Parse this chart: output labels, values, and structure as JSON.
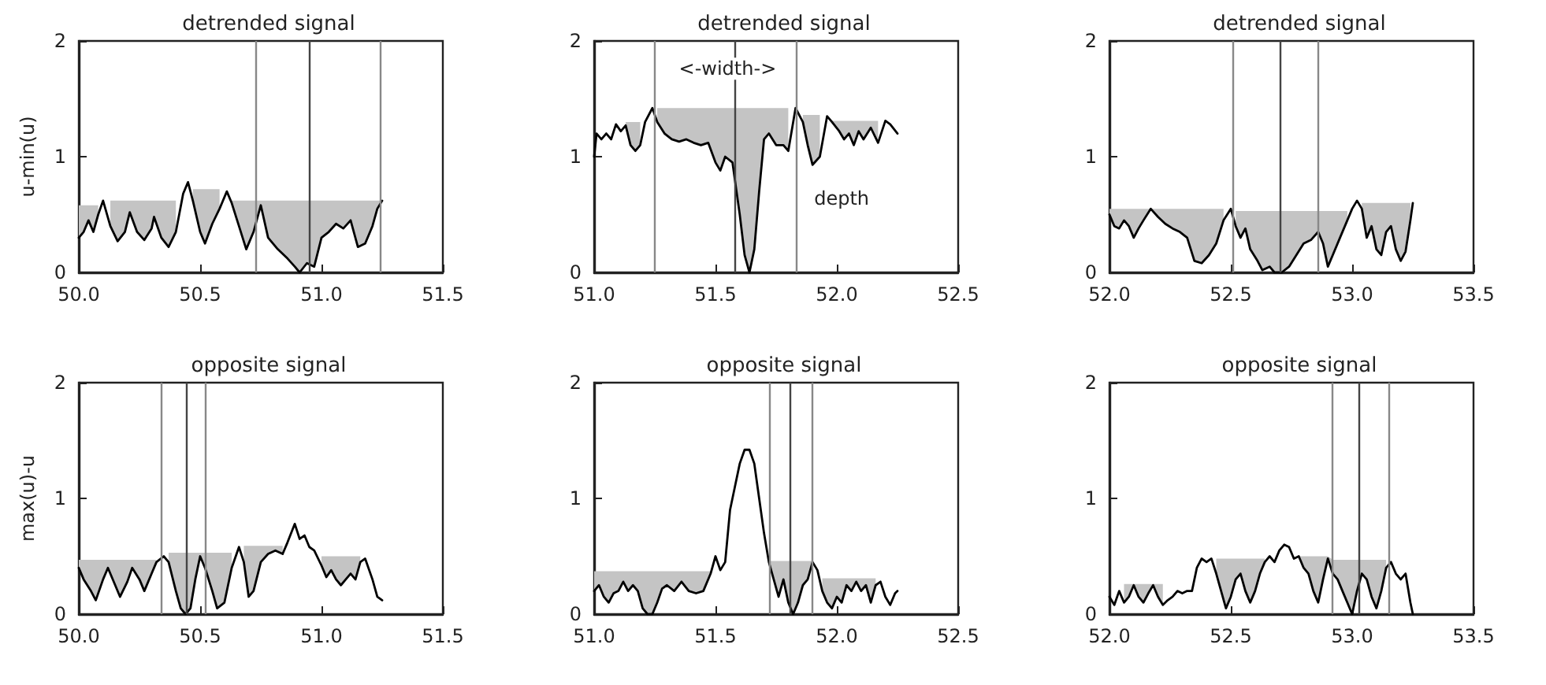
{
  "chart_data": [
    {
      "type": "line",
      "title": "detrended signal",
      "ylabel": "u-min(u)",
      "xlim": [
        50,
        51.5
      ],
      "xticks": [
        {
          "value": 50,
          "label": "50.0"
        },
        50.5,
        {
          "value": 51,
          "label": "51.0"
        },
        51.5
      ],
      "ylim": [
        0,
        2
      ],
      "yticks": [
        0,
        1,
        2
      ],
      "series": [
        {
          "color": "#000000",
          "x": [
            50.0,
            50.02,
            50.04,
            50.06,
            50.08,
            50.1,
            50.13,
            50.16,
            50.19,
            50.21,
            50.24,
            50.27,
            50.3,
            50.31,
            50.34,
            50.37,
            50.4,
            50.43,
            50.45,
            50.47,
            50.5,
            50.52,
            50.55,
            50.58,
            50.61,
            50.63,
            50.66,
            50.69,
            50.72,
            50.75,
            50.78,
            50.82,
            50.86,
            50.89,
            50.91,
            50.94,
            50.97,
            51.0,
            51.03,
            51.06,
            51.09,
            51.12,
            51.15,
            51.18,
            51.21,
            51.23,
            51.25
          ],
          "values": [
            0.3,
            0.35,
            0.45,
            0.35,
            0.5,
            0.62,
            0.4,
            0.27,
            0.35,
            0.52,
            0.35,
            0.28,
            0.38,
            0.48,
            0.3,
            0.22,
            0.35,
            0.68,
            0.78,
            0.62,
            0.35,
            0.25,
            0.42,
            0.55,
            0.7,
            0.6,
            0.4,
            0.2,
            0.35,
            0.58,
            0.3,
            0.2,
            0.12,
            0.05,
            0.0,
            0.08,
            0.05,
            0.3,
            0.35,
            0.42,
            0.38,
            0.45,
            0.22,
            0.25,
            0.4,
            0.55,
            0.62
          ],
          "lower": [
            0.3,
            0.35,
            0.45,
            0.35,
            0.5,
            null,
            0.4,
            0.27,
            0.35,
            0.52,
            0.35,
            0.28,
            0.38,
            0.48,
            0.3,
            0.22,
            0.35,
            null,
            null,
            0.62,
            0.35,
            0.25,
            0.42,
            0.55,
            null,
            0.6,
            0.4,
            0.2,
            0.35,
            0.58,
            0.3,
            0.2,
            0.12,
            0.05,
            0.0,
            0.08,
            0.05,
            0.3,
            0.35,
            0.42,
            0.38,
            0.45,
            0.22,
            0.25,
            0.4,
            0.55,
            0.62
          ],
          "upper": [
            0.58,
            0.58,
            0.58,
            0.58,
            0.58,
            null,
            0.62,
            0.62,
            0.62,
            0.62,
            0.62,
            0.62,
            0.62,
            0.62,
            0.62,
            0.62,
            0.62,
            null,
            null,
            0.72,
            0.72,
            0.72,
            0.72,
            0.72,
            null,
            0.62,
            0.62,
            0.62,
            0.62,
            0.62,
            0.62,
            0.62,
            0.62,
            0.62,
            0.62,
            0.62,
            0.62,
            0.62,
            0.62,
            0.62,
            0.62,
            0.62,
            0.62,
            0.62,
            0.62,
            0.62,
            0.62
          ]
        }
      ],
      "ref_lines": [
        {
          "axis": "x",
          "value": 50.73,
          "color": "#888888"
        },
        {
          "axis": "x",
          "value": 50.95,
          "color": "#444444"
        },
        {
          "axis": "x",
          "value": 51.24,
          "color": "#888888"
        }
      ]
    },
    {
      "type": "line",
      "title": "detrended signal",
      "xlim": [
        51,
        52.5
      ],
      "xticks": [
        {
          "value": 51,
          "label": "51.0"
        },
        51.5,
        {
          "value": 52,
          "label": "52.0"
        },
        52.5
      ],
      "ylim": [
        0,
        2
      ],
      "yticks": [
        0,
        1,
        2
      ],
      "series": [
        {
          "color": "#000000",
          "x": [
            51.0,
            51.01,
            51.03,
            51.05,
            51.07,
            51.09,
            51.11,
            51.13,
            51.15,
            51.17,
            51.19,
            51.21,
            51.24,
            51.26,
            51.29,
            51.32,
            51.35,
            51.38,
            51.41,
            51.44,
            51.47,
            51.5,
            51.52,
            51.54,
            51.57,
            51.6,
            51.62,
            51.64,
            51.66,
            51.68,
            51.7,
            51.72,
            51.75,
            51.78,
            51.8,
            51.83,
            51.86,
            51.88,
            51.9,
            51.93,
            51.96,
            51.98,
            52.01,
            52.03,
            52.05,
            52.07,
            52.09,
            52.11,
            52.14,
            52.17,
            52.2,
            52.22,
            52.25
          ],
          "values": [
            1.0,
            1.2,
            1.15,
            1.2,
            1.15,
            1.28,
            1.22,
            1.27,
            1.1,
            1.05,
            1.1,
            1.3,
            1.42,
            1.3,
            1.2,
            1.15,
            1.13,
            1.15,
            1.12,
            1.1,
            1.12,
            0.95,
            0.88,
            1.0,
            0.95,
            0.5,
            0.15,
            0.0,
            0.2,
            0.7,
            1.15,
            1.2,
            1.1,
            1.1,
            1.05,
            1.42,
            1.3,
            1.1,
            0.93,
            1.0,
            1.35,
            1.3,
            1.22,
            1.15,
            1.2,
            1.1,
            1.22,
            1.15,
            1.25,
            1.12,
            1.31,
            1.28,
            1.2
          ],
          "lower": [
            null,
            null,
            null,
            null,
            null,
            null,
            null,
            1.27,
            1.1,
            1.05,
            1.1,
            null,
            null,
            1.3,
            1.2,
            1.15,
            1.13,
            1.15,
            1.12,
            1.1,
            1.12,
            0.95,
            0.88,
            1.0,
            0.95,
            0.5,
            0.15,
            0.0,
            0.2,
            0.7,
            1.15,
            1.2,
            1.1,
            1.1,
            1.05,
            null,
            1.3,
            1.1,
            0.93,
            1.0,
            null,
            1.3,
            1.22,
            1.15,
            1.2,
            1.1,
            1.22,
            1.15,
            1.25,
            1.12,
            null,
            null,
            null
          ],
          "upper": [
            null,
            null,
            null,
            null,
            null,
            null,
            null,
            1.3,
            1.3,
            1.3,
            1.3,
            null,
            null,
            1.42,
            1.42,
            1.42,
            1.42,
            1.42,
            1.42,
            1.42,
            1.42,
            1.42,
            1.42,
            1.42,
            1.42,
            1.42,
            1.42,
            1.42,
            1.42,
            1.42,
            1.42,
            1.42,
            1.42,
            1.42,
            1.42,
            null,
            1.36,
            1.36,
            1.36,
            1.36,
            null,
            1.31,
            1.31,
            1.31,
            1.31,
            1.31,
            1.31,
            1.31,
            1.31,
            1.31,
            null,
            null,
            null
          ]
        }
      ],
      "ref_lines": [
        {
          "axis": "x",
          "value": 51.25,
          "color": "#888888"
        },
        {
          "axis": "x",
          "value": 51.58,
          "color": "#444444"
        },
        {
          "axis": "x",
          "value": 51.83,
          "color": "#888888"
        }
      ],
      "annotations": [
        {
          "text": "<-width->",
          "x": 51.55,
          "y": 1.76
        },
        "depth"
      ]
    },
    {
      "type": "line",
      "title": "detrended signal",
      "xlim": [
        52,
        53.5
      ],
      "xticks": [
        {
          "value": 52,
          "label": "52.0"
        },
        52.5,
        {
          "value": 53,
          "label": "53.0"
        },
        53.5
      ],
      "ylim": [
        0,
        2
      ],
      "yticks": [
        0,
        1,
        2
      ],
      "series": [
        {
          "color": "#000000",
          "x": [
            52.0,
            52.02,
            52.04,
            52.06,
            52.08,
            52.1,
            52.12,
            52.14,
            52.17,
            52.2,
            52.23,
            52.26,
            52.29,
            52.32,
            52.35,
            52.38,
            52.41,
            52.44,
            52.47,
            52.5,
            52.52,
            52.54,
            52.56,
            52.58,
            52.61,
            52.63,
            52.66,
            52.68,
            52.71,
            52.74,
            52.77,
            52.8,
            52.83,
            52.86,
            52.88,
            52.9,
            52.92,
            52.95,
            52.98,
            53.0,
            53.02,
            53.04,
            53.06,
            53.08,
            53.1,
            53.12,
            53.14,
            53.16,
            53.18,
            53.2,
            53.22,
            53.24,
            53.25
          ],
          "values": [
            0.5,
            0.4,
            0.38,
            0.45,
            0.4,
            0.3,
            0.38,
            0.45,
            0.55,
            0.48,
            0.42,
            0.38,
            0.35,
            0.3,
            0.1,
            0.08,
            0.15,
            0.25,
            0.45,
            0.55,
            0.4,
            0.3,
            0.38,
            0.2,
            0.1,
            0.02,
            0.05,
            0.0,
            0.0,
            0.05,
            0.15,
            0.25,
            0.28,
            0.35,
            0.25,
            0.05,
            0.15,
            0.3,
            0.45,
            0.55,
            0.62,
            0.55,
            0.3,
            0.4,
            0.2,
            0.15,
            0.35,
            0.4,
            0.2,
            0.1,
            0.18,
            0.45,
            0.6
          ],
          "lower": [
            0.5,
            0.4,
            0.38,
            0.45,
            0.4,
            0.3,
            0.38,
            0.45,
            0.55,
            0.48,
            0.42,
            0.38,
            0.35,
            0.3,
            0.1,
            0.08,
            0.15,
            0.25,
            0.45,
            null,
            0.4,
            0.3,
            0.38,
            0.2,
            0.1,
            0.02,
            0.05,
            0.0,
            0.0,
            0.05,
            0.15,
            0.25,
            0.28,
            0.35,
            0.25,
            0.05,
            0.15,
            0.3,
            0.45,
            null,
            null,
            0.55,
            0.3,
            0.4,
            0.2,
            0.15,
            0.35,
            0.4,
            0.2,
            0.1,
            0.18,
            0.45,
            null
          ],
          "upper": [
            0.55,
            0.55,
            0.55,
            0.55,
            0.55,
            0.55,
            0.55,
            0.55,
            0.55,
            0.55,
            0.55,
            0.55,
            0.55,
            0.55,
            0.55,
            0.55,
            0.55,
            0.55,
            0.55,
            null,
            0.53,
            0.53,
            0.53,
            0.53,
            0.53,
            0.53,
            0.53,
            0.53,
            0.53,
            0.53,
            0.53,
            0.53,
            0.53,
            0.53,
            0.53,
            0.53,
            0.53,
            0.53,
            0.53,
            null,
            null,
            0.6,
            0.6,
            0.6,
            0.6,
            0.6,
            0.6,
            0.6,
            0.6,
            0.6,
            0.6,
            0.6,
            null
          ]
        }
      ],
      "ref_lines": [
        {
          "axis": "x",
          "value": 52.51,
          "color": "#888888"
        },
        {
          "axis": "x",
          "value": 52.7,
          "color": "#444444"
        },
        {
          "axis": "x",
          "value": 52.86,
          "color": "#888888"
        }
      ]
    },
    {
      "type": "line",
      "title": "opposite signal",
      "ylabel": "max(u)-u",
      "xlim": [
        50,
        51.5
      ],
      "xticks": [
        {
          "value": 50,
          "label": "50.0"
        },
        50.5,
        {
          "value": 51,
          "label": "51.0"
        },
        51.5
      ],
      "ylim": [
        0,
        2
      ],
      "yticks": [
        0,
        1,
        2
      ],
      "series": [
        {
          "color": "#000000",
          "x": [
            50.0,
            50.02,
            50.05,
            50.07,
            50.1,
            50.12,
            50.15,
            50.17,
            50.2,
            50.22,
            50.25,
            50.27,
            50.3,
            50.32,
            50.35,
            50.37,
            50.4,
            50.42,
            50.44,
            50.46,
            50.48,
            50.5,
            50.52,
            50.55,
            50.57,
            50.6,
            50.63,
            50.66,
            50.68,
            50.7,
            50.72,
            50.75,
            50.78,
            50.81,
            50.84,
            50.86,
            50.89,
            50.91,
            50.93,
            50.95,
            50.97,
            51.0,
            51.02,
            51.04,
            51.06,
            51.08,
            51.1,
            51.12,
            51.14,
            51.16,
            51.18,
            51.21,
            51.23,
            51.25
          ],
          "values": [
            0.4,
            0.3,
            0.2,
            0.12,
            0.3,
            0.4,
            0.25,
            0.15,
            0.28,
            0.4,
            0.3,
            0.2,
            0.35,
            0.45,
            0.5,
            0.45,
            0.2,
            0.05,
            0.0,
            0.05,
            0.3,
            0.5,
            0.4,
            0.2,
            0.05,
            0.1,
            0.4,
            0.58,
            0.45,
            0.15,
            0.2,
            0.45,
            0.52,
            0.55,
            0.52,
            0.62,
            0.78,
            0.65,
            0.68,
            0.58,
            0.55,
            0.42,
            0.32,
            0.38,
            0.3,
            0.25,
            0.3,
            0.35,
            0.3,
            0.45,
            0.48,
            0.3,
            0.15,
            0.12
          ],
          "lower": [
            0.4,
            0.3,
            0.2,
            0.12,
            0.3,
            0.4,
            0.25,
            0.15,
            0.28,
            0.4,
            0.3,
            0.2,
            0.35,
            0.45,
            null,
            0.45,
            0.2,
            0.05,
            0.0,
            0.05,
            0.3,
            0.5,
            0.4,
            0.2,
            0.05,
            0.1,
            0.4,
            null,
            0.45,
            0.15,
            0.2,
            0.45,
            0.52,
            0.55,
            0.52,
            null,
            null,
            null,
            null,
            null,
            null,
            0.42,
            0.32,
            0.38,
            0.3,
            0.25,
            0.3,
            0.35,
            0.3,
            0.45,
            null,
            null,
            null,
            null
          ],
          "upper": [
            0.47,
            0.47,
            0.47,
            0.47,
            0.47,
            0.47,
            0.47,
            0.47,
            0.47,
            0.47,
            0.47,
            0.47,
            0.47,
            0.47,
            null,
            0.53,
            0.53,
            0.53,
            0.53,
            0.53,
            0.53,
            0.53,
            0.53,
            0.53,
            0.53,
            0.53,
            0.53,
            null,
            0.59,
            0.59,
            0.59,
            0.59,
            0.59,
            0.59,
            0.59,
            null,
            null,
            null,
            null,
            null,
            null,
            0.5,
            0.5,
            0.5,
            0.5,
            0.5,
            0.5,
            0.5,
            0.5,
            0.5,
            null,
            null,
            null,
            null
          ]
        }
      ],
      "ref_lines": [
        {
          "axis": "x",
          "value": 50.34,
          "color": "#888888"
        },
        {
          "axis": "x",
          "value": 50.44,
          "color": "#444444"
        },
        {
          "axis": "x",
          "value": 50.52,
          "color": "#888888"
        }
      ]
    },
    {
      "type": "line",
      "title": "opposite signal",
      "xlim": [
        51,
        52.5
      ],
      "xticks": [
        {
          "value": 51,
          "label": "51.0"
        },
        51.5,
        {
          "value": 52,
          "label": "52.0"
        },
        52.5
      ],
      "ylim": [
        0,
        2
      ],
      "yticks": [
        0,
        1,
        2
      ],
      "series": [
        {
          "color": "#000000",
          "x": [
            51.0,
            51.02,
            51.04,
            51.06,
            51.08,
            51.1,
            51.12,
            51.14,
            51.16,
            51.18,
            51.2,
            51.22,
            51.24,
            51.26,
            51.28,
            51.3,
            51.33,
            51.36,
            51.39,
            51.42,
            51.45,
            51.48,
            51.5,
            51.52,
            51.54,
            51.56,
            51.58,
            51.6,
            51.62,
            51.64,
            51.66,
            51.68,
            51.7,
            51.72,
            51.74,
            51.76,
            51.78,
            51.8,
            51.82,
            51.84,
            51.86,
            51.88,
            51.9,
            51.92,
            51.94,
            51.96,
            51.98,
            52.0,
            52.02,
            52.04,
            52.06,
            52.08,
            52.1,
            52.12,
            52.14,
            52.16,
            52.18,
            52.2,
            52.22,
            52.24,
            52.25
          ],
          "values": [
            0.2,
            0.25,
            0.15,
            0.1,
            0.18,
            0.2,
            0.28,
            0.2,
            0.25,
            0.2,
            0.05,
            0.0,
            0.0,
            0.1,
            0.22,
            0.25,
            0.2,
            0.28,
            0.2,
            0.18,
            0.2,
            0.35,
            0.5,
            0.38,
            0.45,
            0.9,
            1.1,
            1.3,
            1.42,
            1.42,
            1.3,
            1.0,
            0.7,
            0.45,
            0.3,
            0.15,
            0.3,
            0.1,
            0.0,
            0.1,
            0.25,
            0.3,
            0.45,
            0.38,
            0.2,
            0.1,
            0.05,
            0.15,
            0.1,
            0.25,
            0.2,
            0.28,
            0.2,
            0.25,
            0.1,
            0.25,
            0.28,
            0.15,
            0.08,
            0.18,
            0.2
          ],
          "lower": [
            0.2,
            0.25,
            0.15,
            0.1,
            0.18,
            0.2,
            0.28,
            0.2,
            0.25,
            0.2,
            0.05,
            0.0,
            0.0,
            0.1,
            0.22,
            0.25,
            0.2,
            0.28,
            0.2,
            0.18,
            0.2,
            0.35,
            null,
            null,
            null,
            null,
            null,
            null,
            null,
            null,
            null,
            null,
            null,
            0.45,
            0.3,
            0.15,
            0.3,
            0.1,
            0.0,
            0.1,
            0.25,
            0.3,
            0.45,
            null,
            0.2,
            0.1,
            0.05,
            0.15,
            0.1,
            0.25,
            0.2,
            0.28,
            0.2,
            0.25,
            0.1,
            0.25,
            null,
            null,
            null,
            null,
            null
          ],
          "upper": [
            0.37,
            0.37,
            0.37,
            0.37,
            0.37,
            0.37,
            0.37,
            0.37,
            0.37,
            0.37,
            0.37,
            0.37,
            0.37,
            0.37,
            0.37,
            0.37,
            0.37,
            0.37,
            0.37,
            0.37,
            0.37,
            0.37,
            null,
            null,
            null,
            null,
            null,
            null,
            null,
            null,
            null,
            null,
            null,
            0.46,
            0.46,
            0.46,
            0.46,
            0.46,
            0.46,
            0.46,
            0.46,
            0.46,
            0.46,
            null,
            0.31,
            0.31,
            0.31,
            0.31,
            0.31,
            0.31,
            0.31,
            0.31,
            0.31,
            0.31,
            0.31,
            0.31,
            null,
            null,
            null,
            null,
            null
          ]
        }
      ],
      "ref_lines": [
        {
          "axis": "x",
          "value": 51.72,
          "color": "#888888"
        },
        {
          "axis": "x",
          "value": 51.81,
          "color": "#444444"
        },
        {
          "axis": "x",
          "value": 51.9,
          "color": "#888888"
        }
      ]
    },
    {
      "type": "line",
      "title": "opposite signal",
      "xlim": [
        52,
        53.5
      ],
      "xticks": [
        {
          "value": 52,
          "label": "52.0"
        },
        52.5,
        {
          "value": 53,
          "label": "53.0"
        },
        53.5
      ],
      "ylim": [
        0,
        2
      ],
      "yticks": [
        0,
        1,
        2
      ],
      "series": [
        {
          "color": "#000000",
          "x": [
            52.0,
            52.02,
            52.04,
            52.06,
            52.08,
            52.1,
            52.12,
            52.14,
            52.16,
            52.18,
            52.2,
            52.22,
            52.24,
            52.26,
            52.28,
            52.3,
            52.32,
            52.34,
            52.36,
            52.38,
            52.4,
            52.42,
            52.44,
            52.46,
            52.48,
            52.5,
            52.52,
            52.54,
            52.56,
            52.58,
            52.6,
            52.62,
            52.64,
            52.66,
            52.68,
            52.7,
            52.72,
            52.74,
            52.76,
            52.78,
            52.8,
            52.82,
            52.84,
            52.86,
            52.88,
            52.9,
            52.92,
            52.94,
            52.96,
            52.98,
            53.0,
            53.02,
            53.04,
            53.06,
            53.08,
            53.1,
            53.12,
            53.14,
            53.16,
            53.18,
            53.2,
            53.22,
            53.24,
            53.25
          ],
          "values": [
            0.15,
            0.08,
            0.2,
            0.1,
            0.15,
            0.25,
            0.15,
            0.1,
            0.18,
            0.25,
            0.15,
            0.08,
            0.12,
            0.15,
            0.2,
            0.18,
            0.2,
            0.2,
            0.4,
            0.48,
            0.45,
            0.48,
            0.35,
            0.2,
            0.05,
            0.15,
            0.3,
            0.35,
            0.2,
            0.1,
            0.2,
            0.35,
            0.45,
            0.5,
            0.45,
            0.55,
            0.6,
            0.58,
            0.48,
            0.5,
            0.4,
            0.35,
            0.2,
            0.1,
            0.3,
            0.48,
            0.35,
            0.3,
            0.2,
            0.1,
            0.0,
            0.2,
            0.35,
            0.3,
            0.15,
            0.05,
            0.2,
            0.4,
            0.45,
            0.35,
            0.3,
            0.35,
            0.1,
            0.0
          ],
          "lower": [
            null,
            null,
            null,
            0.1,
            0.15,
            0.25,
            0.15,
            0.1,
            0.18,
            0.25,
            0.15,
            0.08,
            null,
            null,
            null,
            null,
            null,
            null,
            null,
            null,
            null,
            null,
            0.35,
            0.2,
            0.05,
            0.15,
            0.3,
            0.35,
            0.2,
            0.1,
            0.2,
            0.35,
            0.45,
            null,
            null,
            null,
            null,
            null,
            null,
            0.5,
            0.4,
            0.35,
            0.2,
            0.1,
            0.3,
            0.48,
            0.35,
            0.3,
            0.2,
            0.1,
            0.0,
            0.2,
            0.35,
            0.3,
            0.15,
            0.05,
            0.2,
            0.4,
            null,
            null,
            null,
            null,
            null,
            null
          ],
          "upper": [
            null,
            null,
            null,
            0.26,
            0.26,
            0.26,
            0.26,
            0.26,
            0.26,
            0.26,
            0.26,
            0.26,
            null,
            null,
            null,
            null,
            null,
            null,
            null,
            null,
            null,
            null,
            0.48,
            0.48,
            0.48,
            0.48,
            0.48,
            0.48,
            0.48,
            0.48,
            0.48,
            0.48,
            0.48,
            null,
            null,
            null,
            null,
            null,
            null,
            0.5,
            0.5,
            0.5,
            0.5,
            0.5,
            0.5,
            0.5,
            0.47,
            0.47,
            0.47,
            0.47,
            0.47,
            0.47,
            0.47,
            0.47,
            0.47,
            0.47,
            0.47,
            0.47,
            null,
            null,
            null,
            null,
            null,
            null
          ]
        }
      ],
      "ref_lines": [
        {
          "axis": "x",
          "value": 52.92,
          "color": "#888888"
        },
        {
          "axis": "x",
          "value": 53.03,
          "color": "#444444"
        },
        {
          "axis": "x",
          "value": 53.15,
          "color": "#888888"
        }
      ]
    }
  ]
}
